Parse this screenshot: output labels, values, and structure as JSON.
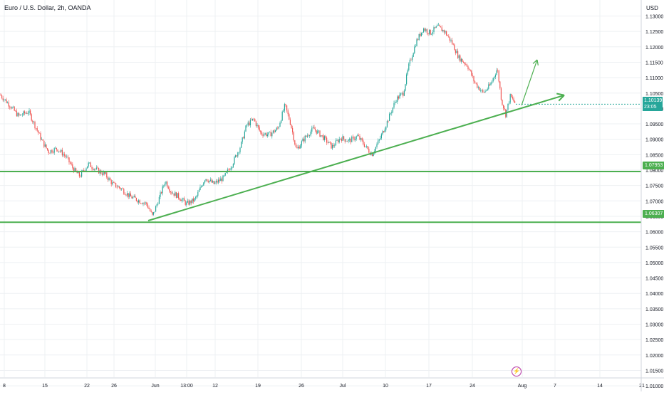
{
  "header": {
    "title": "Euro / U.S. Dollar, 2h, OANDA",
    "currency": "USD"
  },
  "price_tags": {
    "current_price": "1.10139",
    "countdown": "23:05",
    "upper_level": "1.07953",
    "lower_level": "1.06307"
  },
  "colors": {
    "up_candle": "#26a69a",
    "down_candle": "#ef5350",
    "drawing": "#4caf50",
    "grid": "#eef0f3",
    "axis_text": "#131722"
  },
  "icons": {
    "lightning": "lightning-icon"
  },
  "chart_data": {
    "type": "candlestick",
    "symbol": "Euro / U.S. Dollar",
    "interval": "2h",
    "source": "OANDA",
    "y_range": [
      1.007,
      1.1315
    ],
    "y_ticks": [
      "1.13000",
      "1.12500",
      "1.12000",
      "1.11500",
      "1.11000",
      "1.10500",
      "1.10000",
      "1.09500",
      "1.09000",
      "1.08500",
      "1.08000",
      "1.07500",
      "1.07000",
      "1.06500",
      "1.06000",
      "1.05500",
      "1.05000",
      "1.04500",
      "1.04000",
      "1.03500",
      "1.03000",
      "1.02500",
      "1.02000",
      "1.01500",
      "1.01000"
    ],
    "x_ticks": [
      "8",
      "15",
      "22",
      "26",
      "Jun",
      "13:00",
      "12",
      "19",
      "26",
      "Jul",
      "10",
      "17",
      "24",
      "Aug",
      "7",
      "14",
      "21"
    ],
    "price_path": [
      [
        0,
        1.1045
      ],
      [
        14,
        1.101
      ],
      [
        26,
        1.0975
      ],
      [
        40,
        1.099
      ],
      [
        52,
        1.093
      ],
      [
        60,
        1.089
      ],
      [
        68,
        1.086
      ],
      [
        80,
        1.087
      ],
      [
        92,
        1.0845
      ],
      [
        104,
        1.08
      ],
      [
        112,
        1.078
      ],
      [
        124,
        1.082
      ],
      [
        136,
        1.08
      ],
      [
        148,
        1.0785
      ],
      [
        158,
        1.0755
      ],
      [
        170,
        1.074
      ],
      [
        182,
        1.0715
      ],
      [
        196,
        1.07
      ],
      [
        206,
        1.069
      ],
      [
        214,
        1.065
      ],
      [
        222,
        1.07
      ],
      [
        232,
        1.0765
      ],
      [
        240,
        1.073
      ],
      [
        250,
        1.0715
      ],
      [
        262,
        1.069
      ],
      [
        274,
        1.0705
      ],
      [
        288,
        1.0775
      ],
      [
        300,
        1.0755
      ],
      [
        314,
        1.0775
      ],
      [
        326,
        1.082
      ],
      [
        338,
        1.088
      ],
      [
        346,
        1.0945
      ],
      [
        356,
        1.0965
      ],
      [
        366,
        1.092
      ],
      [
        378,
        1.0915
      ],
      [
        390,
        1.0935
      ],
      [
        400,
        1.101
      ],
      [
        408,
        1.095
      ],
      [
        416,
        1.0865
      ],
      [
        428,
        1.0905
      ],
      [
        440,
        1.0935
      ],
      [
        452,
        1.091
      ],
      [
        466,
        1.0875
      ],
      [
        478,
        1.0905
      ],
      [
        490,
        1.0895
      ],
      [
        502,
        1.091
      ],
      [
        512,
        1.088
      ],
      [
        522,
        1.085
      ],
      [
        534,
        1.0905
      ],
      [
        544,
        1.096
      ],
      [
        556,
        1.103
      ],
      [
        566,
        1.105
      ],
      [
        574,
        1.114
      ],
      [
        584,
        1.1215
      ],
      [
        594,
        1.126
      ],
      [
        604,
        1.1245
      ],
      [
        614,
        1.1265
      ],
      [
        624,
        1.125
      ],
      [
        634,
        1.1215
      ],
      [
        644,
        1.1165
      ],
      [
        656,
        1.114
      ],
      [
        666,
        1.1085
      ],
      [
        678,
        1.105
      ],
      [
        688,
        1.1075
      ],
      [
        698,
        1.113
      ],
      [
        704,
        1.1025
      ],
      [
        710,
        1.098
      ],
      [
        716,
        1.104
      ],
      [
        724,
        1.1014
      ]
    ],
    "horizontal_levels": [
      1.07953,
      1.06307
    ],
    "current_price": 1.10139,
    "trendline": {
      "from": {
        "x_index": 208,
        "price": 1.0636
      },
      "to": {
        "x_index": 792,
        "price": 1.1043
      }
    },
    "projection_arrow": {
      "from": {
        "x_index": 732,
        "price": 1.101
      },
      "to": {
        "x_index": 754,
        "price": 1.1158
      }
    },
    "grid": true
  }
}
